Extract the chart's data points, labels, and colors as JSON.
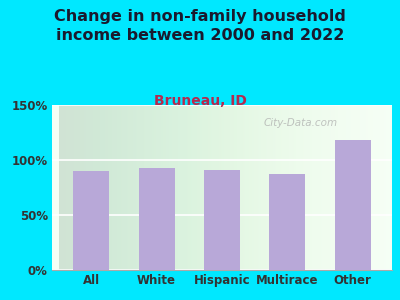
{
  "title": "Change in non-family household\nincome between 2000 and 2022",
  "subtitle": "Bruneau, ID",
  "categories": [
    "All",
    "White",
    "Hispanic",
    "Multirace",
    "Other"
  ],
  "values": [
    90,
    93,
    91,
    87,
    118
  ],
  "bar_color": "#b8a8d8",
  "background_outer": "#00e8ff",
  "title_color": "#1a1a2e",
  "subtitle_color": "#b5294e",
  "tick_label_color": "#333333",
  "ylim": [
    0,
    150
  ],
  "yticks": [
    0,
    50,
    100,
    150
  ],
  "ytick_labels": [
    "0%",
    "50%",
    "100%",
    "150%"
  ],
  "title_fontsize": 11.5,
  "subtitle_fontsize": 10,
  "watermark": "City-Data.com"
}
